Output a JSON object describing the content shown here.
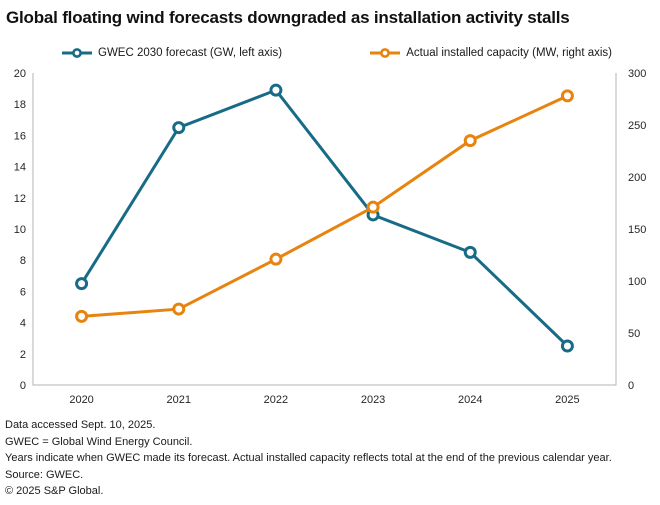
{
  "title": "Global floating wind forecasts downgraded as installation activity stalls",
  "legend": [
    {
      "label": "GWEC 2030 forecast (GW, left axis)",
      "color": "#186B87"
    },
    {
      "label": "Actual installed capacity (MW, right axis)",
      "color": "#E8830D"
    }
  ],
  "chart_data": {
    "type": "line",
    "title": "Global floating wind forecasts downgraded as installation activity stalls",
    "categories": [
      "2020",
      "2021",
      "2022",
      "2023",
      "2024",
      "2025"
    ],
    "series": [
      {
        "name": "GWEC 2030 forecast (GW, left axis)",
        "axis": "left",
        "unit": "GW",
        "color": "#186B87",
        "values": [
          6.5,
          16.5,
          18.9,
          10.9,
          8.5,
          2.5
        ]
      },
      {
        "name": "Actual installed capacity (MW, right axis)",
        "axis": "right",
        "unit": "MW",
        "color": "#E8830D",
        "values": [
          66,
          73,
          121,
          171,
          235,
          278
        ]
      }
    ],
    "left_axis": {
      "min": 0,
      "max": 20,
      "tick_step": 2,
      "tick_labels": [
        "0",
        "2",
        "4",
        "6",
        "8",
        "10",
        "12",
        "14",
        "16",
        "18",
        "20"
      ]
    },
    "right_axis": {
      "min": 0,
      "max": 300,
      "tick_step": 50,
      "tick_labels": [
        "0",
        "50",
        "100",
        "150",
        "200",
        "250",
        "300"
      ]
    },
    "grid": false,
    "legend_position": "top",
    "axis_color": "#B3B3B3",
    "marker_fill": "#FFFFFF"
  },
  "footnotes": [
    "Data accessed Sept. 10, 2025.",
    "GWEC = Global Wind Energy Council.",
    "Years indicate when GWEC made its forecast. Actual installed capacity reflects total at the end of the previous calendar year.",
    "Source: GWEC.",
    "© 2025 S&P Global."
  ]
}
